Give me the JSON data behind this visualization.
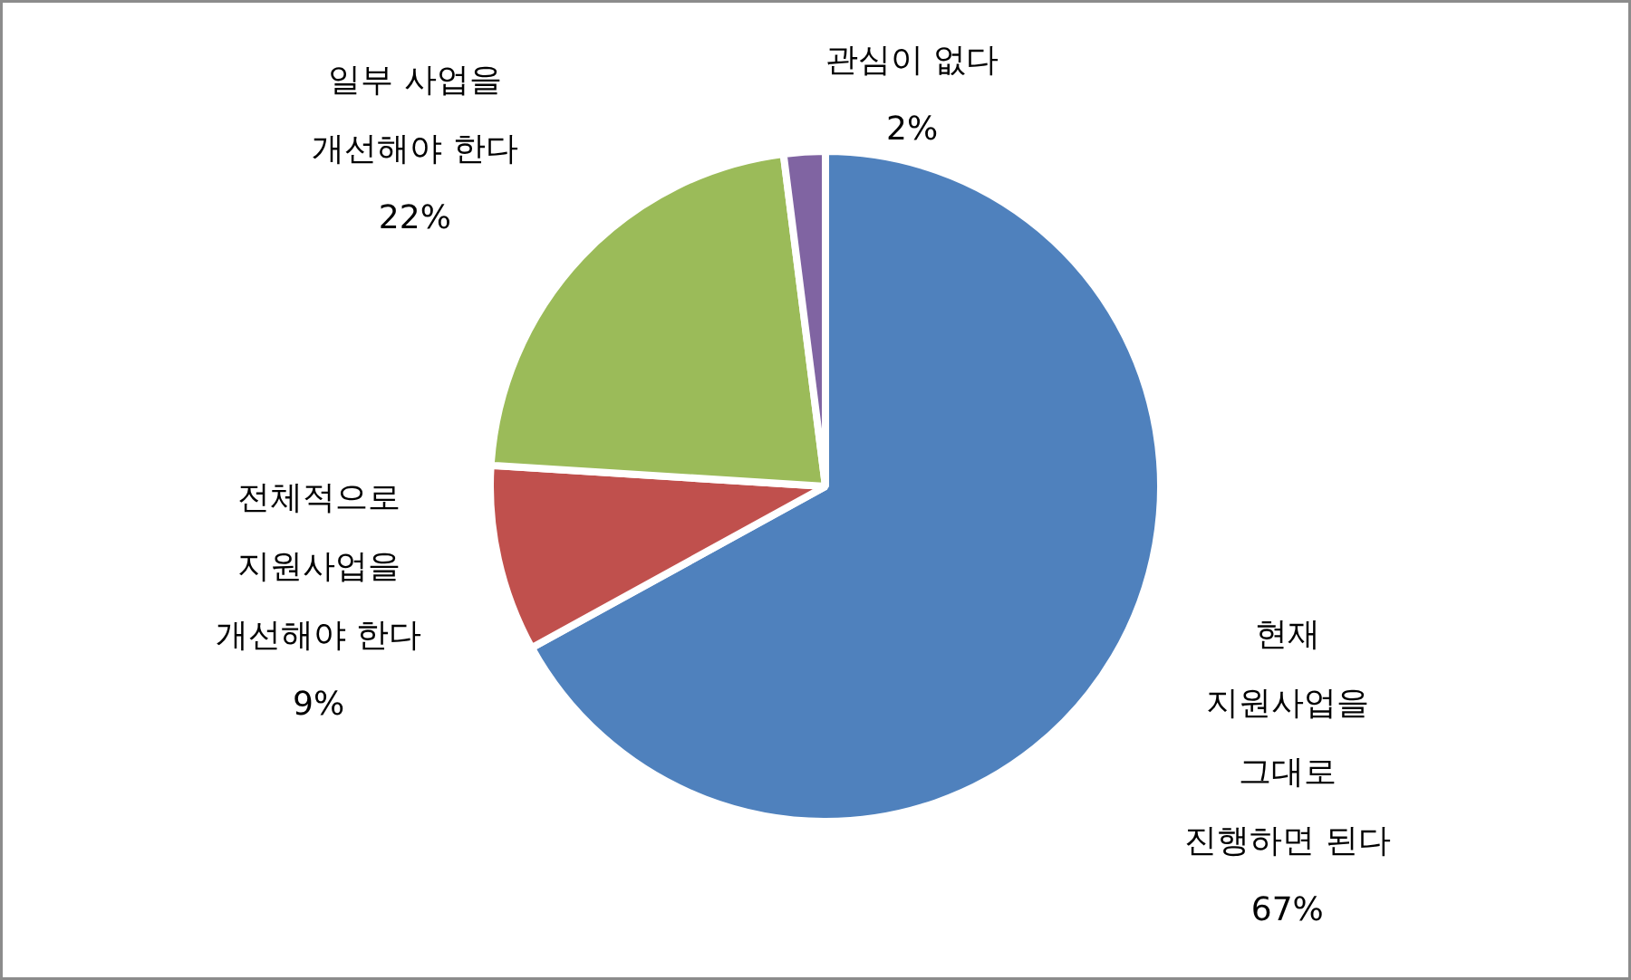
{
  "chart_data": {
    "type": "pie",
    "categories": [
      "현재 지원사업을 그대로 진행하면 된다",
      "전체적으로 지원사업을 개선해야 한다",
      "일부 사업을 개선해야 한다",
      "관심이 없다"
    ],
    "values": [
      67,
      9,
      22,
      2
    ],
    "colors": [
      "#4f81bd",
      "#c0504d",
      "#9bbb59",
      "#8064a2"
    ],
    "value_labels": [
      "67%",
      "9%",
      "22%",
      "2%"
    ]
  }
}
